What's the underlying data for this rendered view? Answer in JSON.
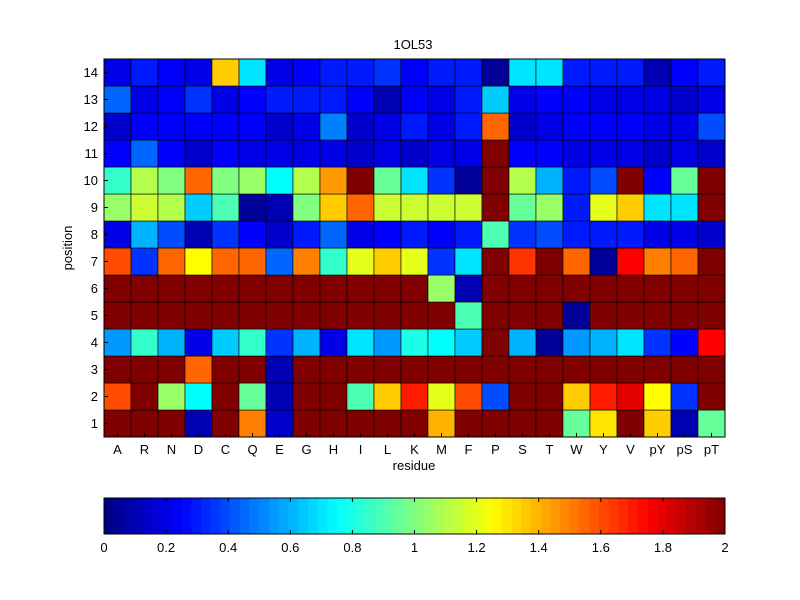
{
  "chart_data": {
    "type": "heatmap",
    "title": "1OL53",
    "xlabel": "residue",
    "ylabel": "position",
    "x_categories": [
      "A",
      "R",
      "N",
      "D",
      "C",
      "Q",
      "E",
      "G",
      "H",
      "I",
      "L",
      "K",
      "M",
      "F",
      "P",
      "S",
      "T",
      "W",
      "Y",
      "V",
      "pY",
      "pS",
      "pT"
    ],
    "y_categories": [
      "1",
      "2",
      "3",
      "4",
      "5",
      "6",
      "7",
      "8",
      "9",
      "10",
      "11",
      "12",
      "13",
      "14"
    ],
    "values": [
      [
        2.0,
        2.0,
        2.0,
        0.1,
        2.0,
        1.5,
        0.15,
        2.0,
        2.0,
        2.0,
        2.0,
        2.0,
        1.4,
        2.0,
        2.0,
        2.0,
        2.0,
        0.95,
        1.3,
        2.0,
        1.35,
        0.1,
        0.95
      ],
      [
        1.6,
        2.0,
        1.05,
        0.75,
        2.0,
        0.95,
        0.1,
        2.0,
        2.0,
        0.9,
        1.35,
        1.7,
        1.2,
        1.6,
        0.4,
        2.0,
        2.0,
        1.35,
        1.7,
        1.8,
        1.25,
        0.35,
        2.0
      ],
      [
        2.0,
        2.0,
        2.0,
        1.55,
        2.0,
        2.0,
        0.1,
        2.0,
        2.0,
        2.0,
        2.0,
        2.0,
        2.0,
        2.0,
        2.0,
        2.0,
        2.0,
        2.0,
        2.0,
        2.0,
        2.0,
        2.0,
        2.0
      ],
      [
        0.55,
        0.85,
        0.6,
        0.2,
        0.65,
        0.85,
        0.35,
        0.6,
        0.2,
        0.7,
        0.55,
        0.8,
        0.75,
        0.65,
        2.0,
        0.6,
        0.05,
        0.55,
        0.6,
        0.7,
        0.35,
        0.25,
        1.75
      ],
      [
        2.0,
        2.0,
        2.0,
        2.0,
        2.0,
        2.0,
        2.0,
        2.0,
        2.0,
        2.0,
        2.0,
        2.0,
        2.0,
        0.9,
        2.0,
        2.0,
        2.0,
        0.05,
        2.0,
        2.0,
        2.0,
        2.0,
        2.0
      ],
      [
        2.0,
        2.0,
        2.0,
        2.0,
        2.0,
        2.0,
        2.0,
        2.0,
        2.0,
        2.0,
        2.0,
        2.0,
        1.05,
        0.1,
        2.0,
        2.0,
        2.0,
        2.0,
        2.0,
        2.0,
        2.0,
        2.0,
        2.0
      ],
      [
        1.6,
        0.35,
        1.55,
        1.25,
        1.55,
        1.55,
        0.45,
        1.5,
        0.85,
        1.2,
        1.35,
        1.2,
        0.35,
        0.7,
        2.0,
        1.65,
        2.0,
        1.55,
        0.05,
        1.75,
        1.5,
        1.55,
        2.0
      ],
      [
        0.2,
        0.6,
        0.4,
        0.1,
        0.35,
        0.25,
        0.15,
        0.3,
        0.45,
        0.2,
        0.25,
        0.3,
        0.25,
        0.3,
        0.9,
        0.35,
        0.4,
        0.3,
        0.3,
        0.3,
        0.2,
        0.2,
        0.15
      ],
      [
        1.05,
        1.15,
        1.1,
        0.65,
        0.9,
        0.05,
        0.1,
        1.0,
        1.35,
        1.55,
        1.15,
        1.15,
        1.15,
        1.15,
        2.0,
        0.95,
        1.05,
        0.3,
        1.2,
        1.35,
        0.7,
        0.7,
        2.0
      ],
      [
        0.85,
        1.1,
        1.0,
        1.55,
        1.0,
        1.05,
        0.75,
        1.1,
        1.45,
        2.0,
        0.95,
        0.7,
        0.35,
        0.05,
        2.0,
        1.1,
        0.6,
        0.3,
        0.4,
        2.0,
        0.25,
        0.95,
        2.0
      ],
      [
        0.25,
        0.45,
        0.25,
        0.15,
        0.25,
        0.2,
        0.2,
        0.2,
        0.2,
        0.15,
        0.2,
        0.15,
        0.2,
        0.2,
        2.0,
        0.25,
        0.25,
        0.2,
        0.2,
        0.2,
        0.15,
        0.2,
        0.15
      ],
      [
        0.15,
        0.25,
        0.25,
        0.25,
        0.25,
        0.25,
        0.15,
        0.2,
        0.5,
        0.15,
        0.2,
        0.3,
        0.2,
        0.3,
        1.55,
        0.15,
        0.2,
        0.25,
        0.25,
        0.25,
        0.2,
        0.2,
        0.4
      ],
      [
        0.45,
        0.2,
        0.25,
        0.35,
        0.2,
        0.25,
        0.3,
        0.3,
        0.3,
        0.25,
        0.1,
        0.25,
        0.2,
        0.3,
        0.65,
        0.2,
        0.25,
        0.25,
        0.2,
        0.2,
        0.2,
        0.15,
        0.2
      ],
      [
        0.2,
        0.3,
        0.25,
        0.2,
        1.35,
        0.7,
        0.2,
        0.25,
        0.3,
        0.3,
        0.35,
        0.25,
        0.3,
        0.3,
        0.05,
        0.7,
        0.7,
        0.3,
        0.3,
        0.3,
        0.1,
        0.25,
        0.3
      ]
    ],
    "colormap": "jet",
    "color_range": [
      0,
      2
    ],
    "colorbar": {
      "orientation": "horizontal",
      "ticks": [
        "0",
        "0.2",
        "0.4",
        "0.6",
        "0.8",
        "1",
        "1.2",
        "1.4",
        "1.6",
        "1.8",
        "2"
      ]
    }
  }
}
